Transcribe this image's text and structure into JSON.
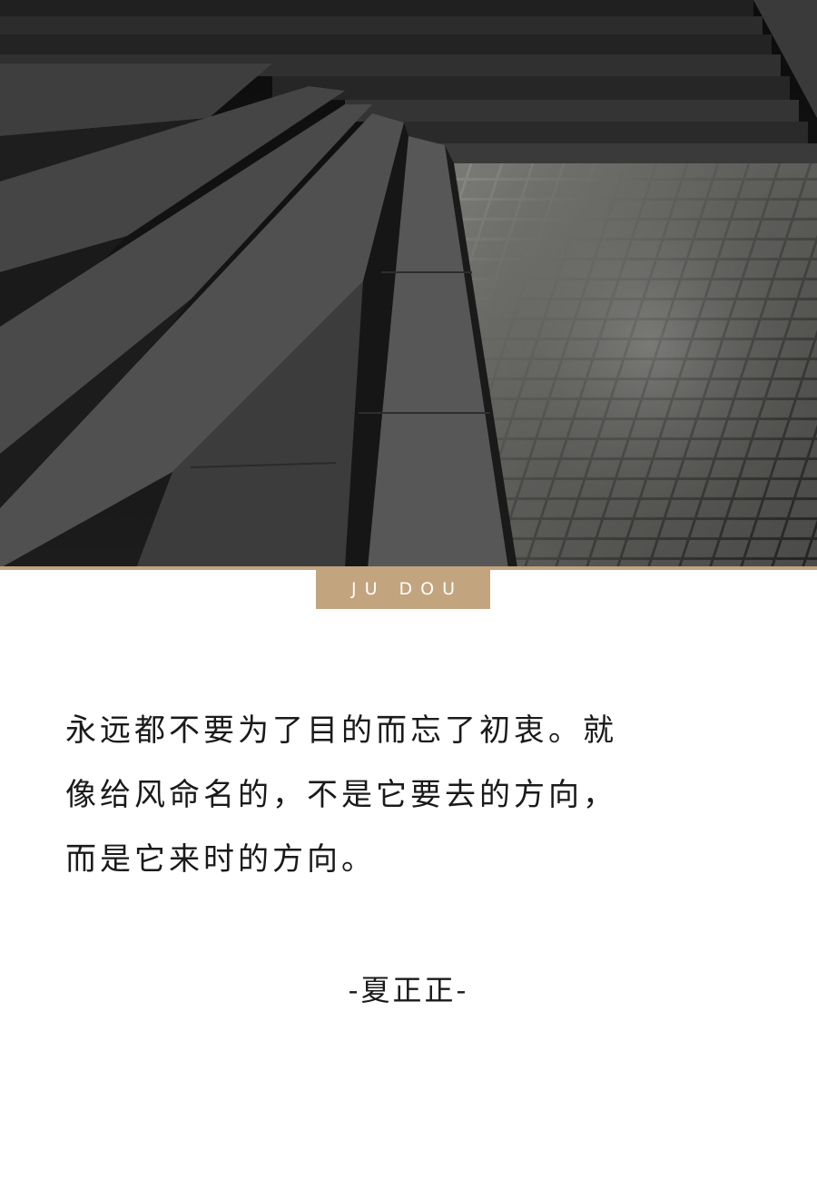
{
  "badge": {
    "text": "JU DOU",
    "color": "#c2a47f"
  },
  "quote": {
    "lines": [
      "永远都不要为了目的而忘了初衷。就",
      "像给风命名的，不是它要去的方向，",
      "而是它来时的方向。"
    ]
  },
  "author": {
    "text": "-夏正正-"
  },
  "photo": {
    "subject": "dark-stone-steps-and-paving"
  }
}
